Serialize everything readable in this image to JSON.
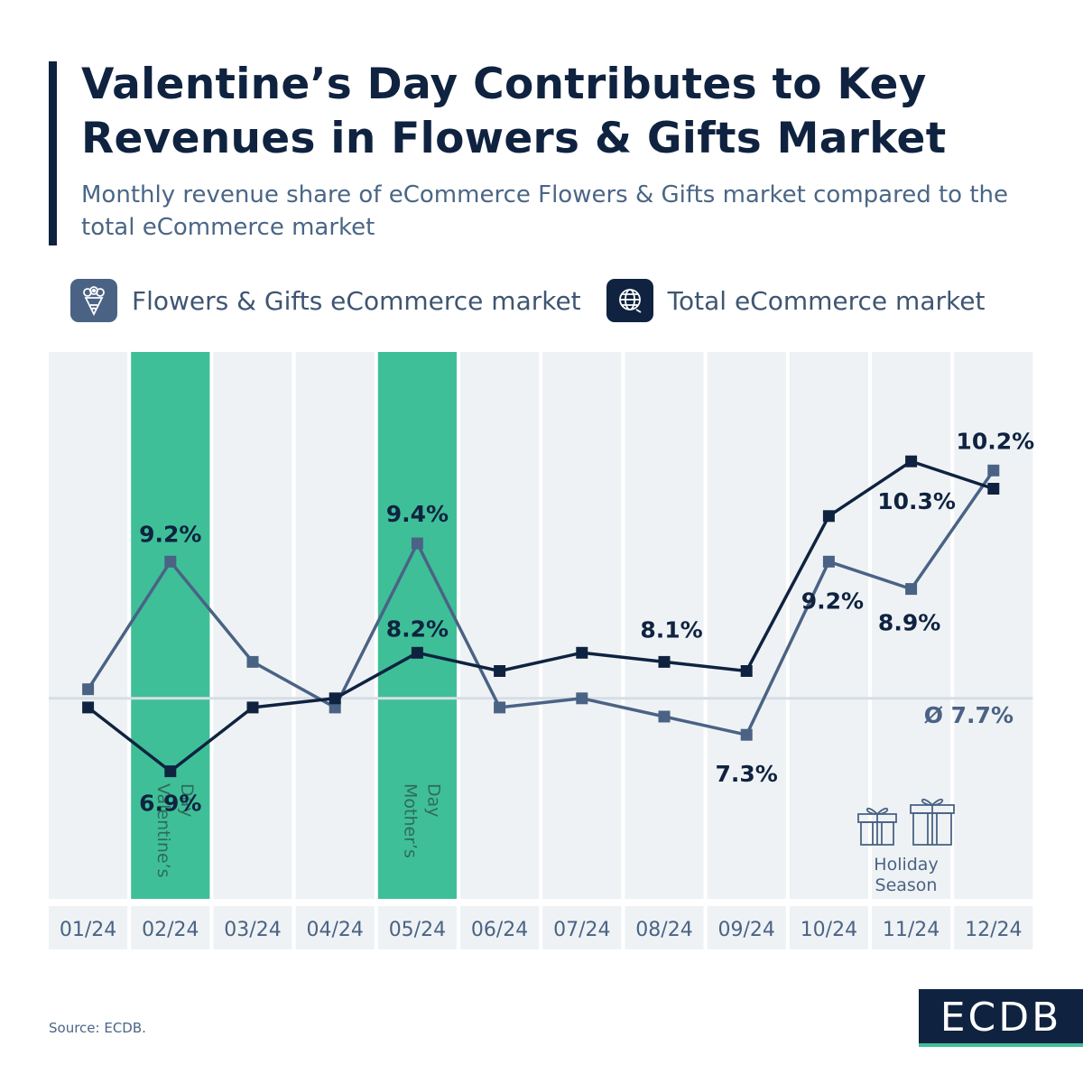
{
  "title": "Valentine’s Day Contributes to Key Revenues in Flowers & Gifts Market",
  "subtitle": "Monthly revenue share of eCommerce Flowers & Gifts market compared to the total eCommerce market",
  "legend": [
    {
      "label": "Flowers & Gifts eCommerce market",
      "icon": "flower-bouquet-icon",
      "color": "#4a6384"
    },
    {
      "label": "Total eCommerce market",
      "icon": "globe-icon",
      "color": "#0f2340"
    }
  ],
  "colors": {
    "flowers": "#4a6384",
    "total": "#0f2340",
    "highlight": "#3fbf98",
    "plot_bg": "#eff2f5",
    "avg_line": "#d6dde6"
  },
  "chart_data": {
    "type": "line",
    "categories": [
      "01/24",
      "02/24",
      "03/24",
      "04/24",
      "05/24",
      "06/24",
      "07/24",
      "08/24",
      "09/24",
      "10/24",
      "11/24",
      "12/24"
    ],
    "series": [
      {
        "name": "Flowers & Gifts eCommerce market",
        "values": [
          7.8,
          9.2,
          8.1,
          7.6,
          9.4,
          7.6,
          7.7,
          7.5,
          7.3,
          9.2,
          8.9,
          10.2
        ]
      },
      {
        "name": "Total eCommerce market",
        "values": [
          7.6,
          6.9,
          7.6,
          7.7,
          8.2,
          8.0,
          8.2,
          8.1,
          8.0,
          9.7,
          10.3,
          10.0
        ]
      }
    ],
    "data_labels": [
      {
        "series": 0,
        "index": 1,
        "text": "9.2%"
      },
      {
        "series": 0,
        "index": 4,
        "text": "9.4%"
      },
      {
        "series": 0,
        "index": 8,
        "text": "7.3%"
      },
      {
        "series": 0,
        "index": 9,
        "text": "9.2%"
      },
      {
        "series": 0,
        "index": 10,
        "text": "8.9%"
      },
      {
        "series": 0,
        "index": 11,
        "text": "10.2%"
      },
      {
        "series": 1,
        "index": 1,
        "text": "6.9%"
      },
      {
        "series": 1,
        "index": 4,
        "text": "8.2%"
      },
      {
        "series": 1,
        "index": 7,
        "text": "8.1%"
      },
      {
        "series": 1,
        "index": 10,
        "text": "10.3%"
      }
    ],
    "average": {
      "value": 7.7,
      "label": "Ø 7.7%"
    },
    "highlights": [
      {
        "index": 1,
        "label": "Valentine’s Day"
      },
      {
        "index": 4,
        "label": "Mother’s Day"
      }
    ],
    "annotation": {
      "index": 10,
      "label": "Holiday Season",
      "icon": "gift-icon"
    },
    "ylim": [
      5.5,
      11.5
    ],
    "grid": false
  },
  "source": "Source: ECDB.",
  "logo": "ECDB"
}
